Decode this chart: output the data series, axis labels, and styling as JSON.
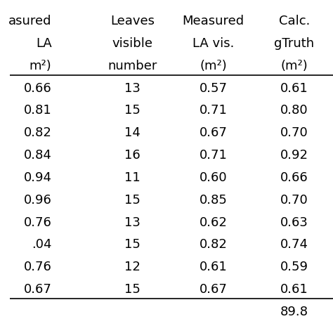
{
  "headers": [
    [
      "asured",
      "Leaves",
      "Measured",
      "Calc."
    ],
    [
      "LA",
      "visible",
      "LA vis.",
      "gTruth"
    ],
    [
      "m²)",
      "number",
      "(m²)",
      "(m²)"
    ]
  ],
  "col1": [
    "0.66",
    "0.81",
    "0.82",
    "0.84",
    "0.94",
    "0.96",
    "0.76",
    ".04",
    "0.76",
    "0.67"
  ],
  "col2": [
    "13",
    "15",
    "14",
    "16",
    "11",
    "15",
    "13",
    "15",
    "12",
    "15"
  ],
  "col3": [
    "0.57",
    "0.71",
    "0.67",
    "0.71",
    "0.60",
    "0.85",
    "0.62",
    "0.82",
    "0.61",
    "0.67"
  ],
  "col4": [
    "0.61",
    "0.80",
    "0.70",
    "0.92",
    "0.66",
    "0.70",
    "0.63",
    "0.74",
    "0.59",
    "0.61"
  ],
  "footer_value": "89.8",
  "bg_color": "#ffffff",
  "text_color": "#000000",
  "font_size": 13
}
